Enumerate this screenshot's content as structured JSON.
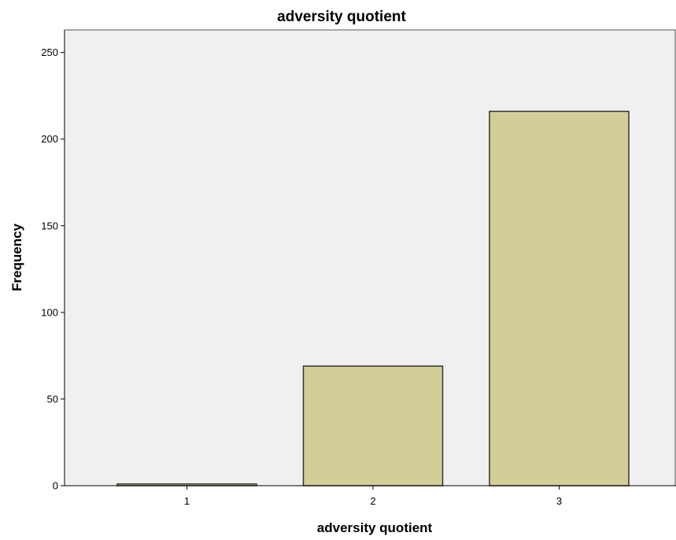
{
  "chart_data": {
    "type": "bar",
    "title": "adversity quotient",
    "xlabel": "adversity quotient",
    "ylabel": "Frequency",
    "categories": [
      "1",
      "2",
      "3"
    ],
    "values": [
      1,
      69,
      216
    ],
    "ylim": [
      0,
      263
    ],
    "yticks": [
      0,
      50,
      100,
      150,
      200,
      250
    ],
    "grid": false,
    "colors": {
      "bar_fill": "#d3ce97",
      "bar_stroke": "#333333",
      "plot_background": "#f0f0f0",
      "axis": "#000000"
    }
  }
}
